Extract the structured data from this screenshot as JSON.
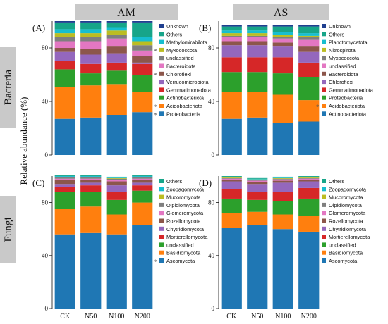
{
  "header": {
    "col1": "AM",
    "col2": "AS",
    "row1": "Bacteria",
    "row2": "Fungi"
  },
  "y_axis_title": "Relative abundance (%)",
  "chart_data": [
    {
      "type": "bar",
      "stacked": true,
      "panel": "(A)",
      "categories": [
        "CK",
        "N50",
        "N100",
        "N200"
      ],
      "ylim": [
        0,
        100
      ],
      "yticks": [
        0,
        40,
        80
      ],
      "series": [
        {
          "name": "Proteobacteria",
          "color": "#1f77b4",
          "values": [
            27,
            28,
            30,
            32
          ],
          "marked": true
        },
        {
          "name": "Acidobacteriota",
          "color": "#ff7f0e",
          "values": [
            24,
            24,
            23,
            15
          ],
          "marked": true
        },
        {
          "name": "Actinobacteriota",
          "color": "#2ca02c",
          "values": [
            13,
            9,
            10,
            13
          ]
        },
        {
          "name": "Gemmatimonadota",
          "color": "#d62728",
          "values": [
            6,
            7,
            6,
            8
          ]
        },
        {
          "name": "Verrucomicrobiota",
          "color": "#9467bd",
          "values": [
            7,
            7,
            7,
            1
          ]
        },
        {
          "name": "Chloroflexi",
          "color": "#8c564b",
          "values": [
            3,
            4,
            5,
            5
          ],
          "marked": true
        },
        {
          "name": "Bacteroidota",
          "color": "#e377c2",
          "values": [
            5,
            6,
            6,
            4
          ]
        },
        {
          "name": "unclassified",
          "color": "#7f7f7f",
          "values": [
            3,
            3,
            3,
            4
          ]
        },
        {
          "name": "Myxococcota",
          "color": "#bcbd22",
          "values": [
            3,
            3,
            3,
            3
          ],
          "marked": true
        },
        {
          "name": "Methylomirabilota",
          "color": "#17becf",
          "values": [
            3,
            3,
            2,
            3
          ]
        },
        {
          "name": "Others",
          "color": "#17a589",
          "values": [
            5,
            5,
            4,
            11
          ]
        },
        {
          "name": "Unknown",
          "color": "#1f3f8f",
          "values": [
            1,
            1,
            1,
            1
          ]
        }
      ]
    },
    {
      "type": "bar",
      "stacked": true,
      "panel": "(B)",
      "categories": [
        "CK",
        "N50",
        "N100",
        "N200"
      ],
      "ylim": [
        0,
        100
      ],
      "yticks": [
        0,
        40,
        80
      ],
      "series": [
        {
          "name": "Actinobacteriota",
          "color": "#1f77b4",
          "values": [
            27,
            28,
            24,
            25
          ]
        },
        {
          "name": "Acidobacteriota",
          "color": "#ff7f0e",
          "values": [
            20,
            19,
            21,
            16
          ],
          "marked": true
        },
        {
          "name": "Proteobacteria",
          "color": "#2ca02c",
          "values": [
            15,
            15,
            16,
            17
          ]
        },
        {
          "name": "Gemmatimonadota",
          "color": "#d62728",
          "values": [
            11,
            11,
            12,
            11
          ]
        },
        {
          "name": "Chloroflexi",
          "color": "#9467bd",
          "values": [
            9,
            9,
            8,
            8
          ]
        },
        {
          "name": "Bacteroidota",
          "color": "#8c564b",
          "values": [
            3,
            3,
            3,
            4
          ]
        },
        {
          "name": "unclassified",
          "color": "#e377c2",
          "values": [
            3,
            3,
            3,
            5
          ]
        },
        {
          "name": "Myxococcota",
          "color": "#7f7f7f",
          "values": [
            1,
            1,
            1,
            2
          ]
        },
        {
          "name": "Nitrospirota",
          "color": "#bcbd22",
          "values": [
            2,
            2,
            2,
            1
          ]
        },
        {
          "name": "Planctomycetota",
          "color": "#17becf",
          "values": [
            2,
            2,
            2,
            2
          ]
        },
        {
          "name": "Others",
          "color": "#17a589",
          "values": [
            3,
            3,
            4,
            5
          ]
        },
        {
          "name": "Unknown",
          "color": "#1f3f8f",
          "values": [
            1,
            1,
            1,
            1
          ]
        }
      ]
    },
    {
      "type": "bar",
      "stacked": true,
      "panel": "(C)",
      "categories": [
        "CK",
        "N50",
        "N100",
        "N200"
      ],
      "ylim": [
        0,
        100
      ],
      "yticks": [
        0,
        40,
        80
      ],
      "series": [
        {
          "name": "Ascomycota",
          "color": "#1f77b4",
          "values": [
            56,
            57,
            56,
            63
          ],
          "marked": true
        },
        {
          "name": "Basidiomycota",
          "color": "#ff7f0e",
          "values": [
            19,
            20,
            15,
            17
          ]
        },
        {
          "name": "unclassified",
          "color": "#2ca02c",
          "values": [
            13,
            11,
            11,
            9
          ]
        },
        {
          "name": "Mortierellomycota",
          "color": "#d62728",
          "values": [
            4,
            5,
            6,
            4
          ]
        },
        {
          "name": "Chytridiomycota",
          "color": "#9467bd",
          "values": [
            2,
            2,
            5,
            2
          ]
        },
        {
          "name": "Rozellomycota",
          "color": "#8c564b",
          "values": [
            3,
            2,
            3,
            2
          ]
        },
        {
          "name": "Glomeromycota",
          "color": "#e377c2",
          "values": [
            1,
            1,
            1,
            1
          ]
        },
        {
          "name": "Olpidiomycota",
          "color": "#7f7f7f",
          "values": [
            1,
            1,
            1,
            1
          ]
        },
        {
          "name": "Mucoromycota",
          "color": "#bcbd22",
          "values": [
            0.5,
            0.5,
            0.5,
            0.5
          ]
        },
        {
          "name": "Zoopagomycota",
          "color": "#17becf",
          "values": [
            0.5,
            0.5,
            0.5,
            0.5
          ]
        },
        {
          "name": "Others",
          "color": "#17a589",
          "values": [
            0.5,
            0.5,
            0.5,
            0.5
          ]
        }
      ]
    },
    {
      "type": "bar",
      "stacked": true,
      "panel": "(D)",
      "categories": [
        "CK",
        "N50",
        "N100",
        "N200"
      ],
      "ylim": [
        0,
        100
      ],
      "yticks": [
        0,
        40,
        80
      ],
      "series": [
        {
          "name": "Ascomycota",
          "color": "#1f77b4",
          "values": [
            61,
            63,
            60,
            58
          ]
        },
        {
          "name": "Basidiomycota",
          "color": "#ff7f0e",
          "values": [
            11,
            10,
            11,
            12
          ]
        },
        {
          "name": "unclassified",
          "color": "#2ca02c",
          "values": [
            11,
            9,
            10,
            13
          ]
        },
        {
          "name": "Mortierellomycota",
          "color": "#d62728",
          "values": [
            7,
            6,
            7,
            8
          ]
        },
        {
          "name": "Chytridiomycota",
          "color": "#9467bd",
          "values": [
            6,
            6,
            7,
            5
          ]
        },
        {
          "name": "Rozellomycota",
          "color": "#8c564b",
          "values": [
            1,
            1.5,
            1.5,
            1
          ]
        },
        {
          "name": "Glomeromycota",
          "color": "#e377c2",
          "values": [
            1,
            1,
            1,
            1
          ]
        },
        {
          "name": "Olpidiomycota",
          "color": "#7f7f7f",
          "values": [
            0.5,
            0.5,
            0.5,
            0.5
          ]
        },
        {
          "name": "Mucoromycota",
          "color": "#bcbd22",
          "values": [
            0.5,
            0.5,
            0.5,
            0.5
          ]
        },
        {
          "name": "Zoopagomycota",
          "color": "#17becf",
          "values": [
            0.5,
            0.5,
            0.5,
            0.5
          ]
        },
        {
          "name": "Others",
          "color": "#17a589",
          "values": [
            0.5,
            0.5,
            0.5,
            0.5
          ]
        }
      ]
    }
  ]
}
